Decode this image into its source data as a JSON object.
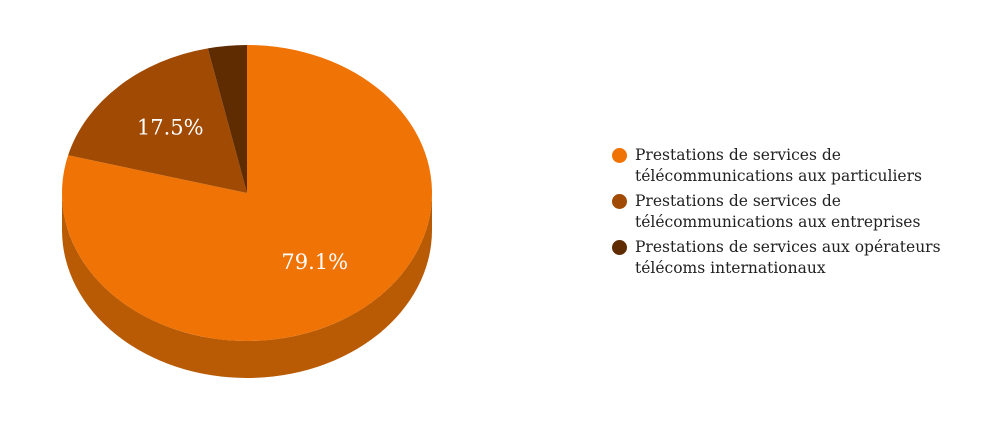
{
  "chart_data": {
    "type": "pie",
    "style": "3d",
    "title": "",
    "series": [
      {
        "name": "Prestations de services de télécommunications aux particuliers",
        "value": 79.1,
        "label": "79.1%",
        "color": "#f07305",
        "side_color": "#b95a05"
      },
      {
        "name": "Prestations de services de télécommunications aux entreprises",
        "value": 17.5,
        "label": "17.5%",
        "color": "#a04a03",
        "side_color": "#7a3902"
      },
      {
        "name": "Prestations de services aux opérateurs télécoms internationaux",
        "value": 3.4,
        "label": "",
        "color": "#5f2c02",
        "side_color": "#4a2201"
      }
    ],
    "legend_position": "right"
  }
}
